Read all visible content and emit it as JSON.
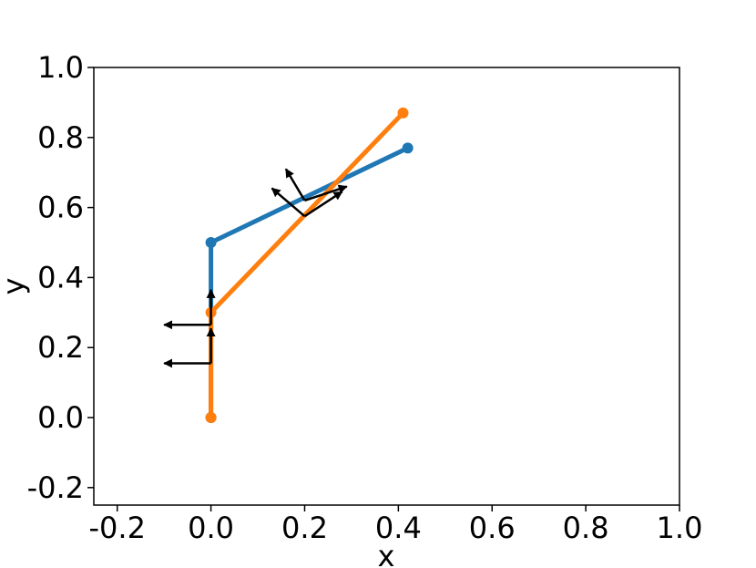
{
  "chart_data": {
    "type": "line",
    "title": "",
    "xlabel": "x",
    "ylabel": "y",
    "xlim": [
      -0.25,
      1.0
    ],
    "ylim": [
      -0.25,
      1.0
    ],
    "x_ticks": [
      -0.2,
      0.0,
      0.2,
      0.4,
      0.6,
      0.8,
      1.0
    ],
    "y_ticks": [
      -0.2,
      0.0,
      0.2,
      0.4,
      0.6,
      0.8,
      1.0
    ],
    "x_tick_labels": [
      "-0.2",
      "0.0",
      "0.2",
      "0.4",
      "0.6",
      "0.8",
      "1.0"
    ],
    "y_tick_labels": [
      "-0.2",
      "0.0",
      "0.2",
      "0.4",
      "0.6",
      "0.8",
      "1.0"
    ],
    "grid": false,
    "series": [
      {
        "color": "#1f77b4",
        "x": [
          0.0,
          0.0,
          0.42
        ],
        "y": [
          0.0,
          0.5,
          0.77
        ]
      },
      {
        "color": "#ff7f0e",
        "x": [
          0.0,
          0.0,
          0.41
        ],
        "y": [
          0.0,
          0.3,
          0.87
        ]
      }
    ],
    "frame_arrows": {
      "color": "#000000",
      "frames": [
        {
          "origin": [
            0.0,
            0.155
          ],
          "axes": [
            [
              0.0,
              0.1
            ],
            [
              -0.1,
              0.0
            ]
          ]
        },
        {
          "origin": [
            0.0,
            0.265
          ],
          "axes": [
            [
              0.0,
              0.1
            ],
            [
              -0.1,
              0.0
            ]
          ]
        },
        {
          "origin": [
            0.2,
            0.575
          ],
          "axes": [
            [
              0.08,
              0.07
            ],
            [
              -0.07,
              0.08
            ]
          ]
        },
        {
          "origin": [
            0.2,
            0.62
          ],
          "axes": [
            [
              0.09,
              0.04
            ],
            [
              -0.04,
              0.09
            ]
          ]
        }
      ]
    }
  }
}
